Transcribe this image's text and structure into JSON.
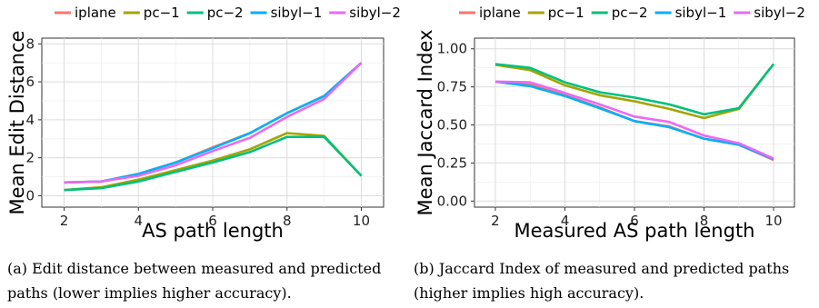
{
  "colors": {
    "iplane": "#F8766D",
    "pc-1": "#A3A500",
    "pc-2": "#00BF7D",
    "sibyl-1": "#00B0F6",
    "sibyl-2": "#E76BF3"
  },
  "chart_data": [
    {
      "type": "line",
      "xlabel": "AS path length",
      "ylabel": "Mean Edit Distance",
      "xlim": [
        1.4,
        10.6
      ],
      "ylim": [
        -0.6,
        8.3
      ],
      "xticks": [
        "2",
        "4",
        "6",
        "8",
        "10"
      ],
      "yticks": [
        "0",
        "2",
        "4",
        "6",
        "8"
      ],
      "x": [
        2,
        3,
        4,
        5,
        6,
        7,
        8,
        9,
        10
      ],
      "legend_position": "top",
      "grid": true,
      "series": [
        {
          "name": "iplane",
          "values": [
            0.7,
            0.75,
            1.15,
            1.75,
            2.55,
            3.3,
            4.35,
            5.25,
            7.0
          ]
        },
        {
          "name": "pc−1",
          "values": [
            0.3,
            0.45,
            0.85,
            1.35,
            1.85,
            2.45,
            3.3,
            3.15,
            1.05
          ]
        },
        {
          "name": "pc−2",
          "values": [
            0.3,
            0.4,
            0.75,
            1.25,
            1.75,
            2.3,
            3.1,
            3.1,
            1.05
          ]
        },
        {
          "name": "sibyl−1",
          "values": [
            0.7,
            0.75,
            1.15,
            1.75,
            2.5,
            3.3,
            4.35,
            5.25,
            7.0
          ]
        },
        {
          "name": "sibyl−2",
          "values": [
            0.7,
            0.75,
            1.05,
            1.6,
            2.35,
            3.05,
            4.15,
            5.1,
            7.0
          ]
        }
      ]
    },
    {
      "type": "line",
      "xlabel": "Measured AS path length",
      "ylabel": "Mean Jaccard Index",
      "xlim": [
        1.4,
        10.6
      ],
      "ylim": [
        -0.04,
        1.07
      ],
      "xticks": [
        "2",
        "4",
        "6",
        "8",
        "10"
      ],
      "yticks": [
        "0.00",
        "0.25",
        "0.50",
        "0.75",
        "1.00"
      ],
      "x": [
        2,
        3,
        4,
        5,
        6,
        7,
        8,
        9,
        10
      ],
      "legend_position": "top",
      "grid": true,
      "series": [
        {
          "name": "iplane",
          "values": [
            0.785,
            0.765,
            0.695,
            0.615,
            0.525,
            0.49,
            0.41,
            0.37,
            0.27
          ]
        },
        {
          "name": "pc−1",
          "values": [
            0.895,
            0.86,
            0.76,
            0.695,
            0.655,
            0.605,
            0.545,
            0.605,
            0.9
          ]
        },
        {
          "name": "pc−2",
          "values": [
            0.9,
            0.875,
            0.78,
            0.715,
            0.68,
            0.635,
            0.57,
            0.61,
            0.9
          ]
        },
        {
          "name": "sibyl−1",
          "values": [
            0.785,
            0.755,
            0.69,
            0.61,
            0.525,
            0.485,
            0.41,
            0.37,
            0.275
          ]
        },
        {
          "name": "sibyl−2",
          "values": [
            0.785,
            0.78,
            0.71,
            0.635,
            0.555,
            0.52,
            0.43,
            0.38,
            0.28
          ]
        }
      ]
    }
  ],
  "captions": {
    "a": "(a)  Edit distance between measured and predicted paths (lower implies higher accuracy).",
    "b": "(b)  Jaccard Index of measured and predicted paths (higher implies high accuracy)."
  }
}
